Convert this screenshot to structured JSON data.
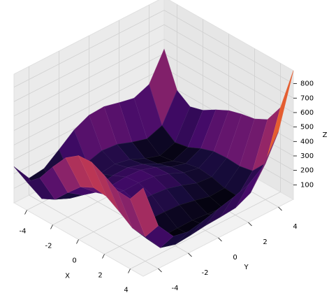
{
  "chart_data": {
    "type": "surface",
    "colormap": "inferno",
    "x_label": "X",
    "y_label": "Y",
    "z_label": "Z",
    "x": [
      -5,
      -4,
      -3,
      -2,
      -1,
      0,
      1,
      2,
      3,
      4,
      5
    ],
    "y": [
      -5,
      -4,
      -3,
      -2,
      -1,
      0,
      1,
      2,
      3,
      4,
      5
    ],
    "z": [
      [
        250,
        196,
        274,
        400,
        514,
        580,
        586,
        544,
        490,
        484,
        610
      ],
      [
        116,
        26,
        72,
        170,
        260,
        306,
        296,
        242,
        180,
        170,
        296
      ],
      [
        130,
        8,
        26,
        100,
        170,
        200,
        178,
        116,
        50,
        40,
        170
      ],
      [
        208,
        58,
        52,
        106,
        160,
        178,
        148,
        82,
        16,
        10,
        148
      ],
      [
        290,
        116,
        90,
        128,
        170,
        180,
        146,
        80,
        18,
        20,
        170
      ],
      [
        340,
        146,
        104,
        130,
        164,
        170,
        136,
        74,
        20,
        34,
        200
      ],
      [
        346,
        136,
        82,
        100,
        130,
        136,
        106,
        52,
        10,
        40,
        226
      ],
      [
        320,
        98,
        36,
        50,
        80,
        90,
        68,
        26,
        0,
        50,
        260
      ],
      [
        298,
        68,
        2,
        16,
        50,
        68,
        58,
        32,
        26,
        100,
        338
      ],
      [
        340,
        106,
        40,
        58,
        100,
        130,
        136,
        130,
        148,
        250,
        520
      ],
      [
        530,
        296,
        234,
        260,
        314,
        360,
        386,
        404,
        450,
        584,
        890
      ]
    ],
    "xlim": [
      -5,
      5
    ],
    "ylim": [
      -5,
      5
    ],
    "zlim": [
      0,
      890
    ],
    "xticks": [
      -4,
      -2,
      0,
      2,
      4
    ],
    "yticks": [
      -4,
      -2,
      0,
      2,
      4
    ],
    "zticks": [
      100,
      200,
      300,
      400,
      500,
      600,
      700,
      800
    ],
    "grid": true
  }
}
